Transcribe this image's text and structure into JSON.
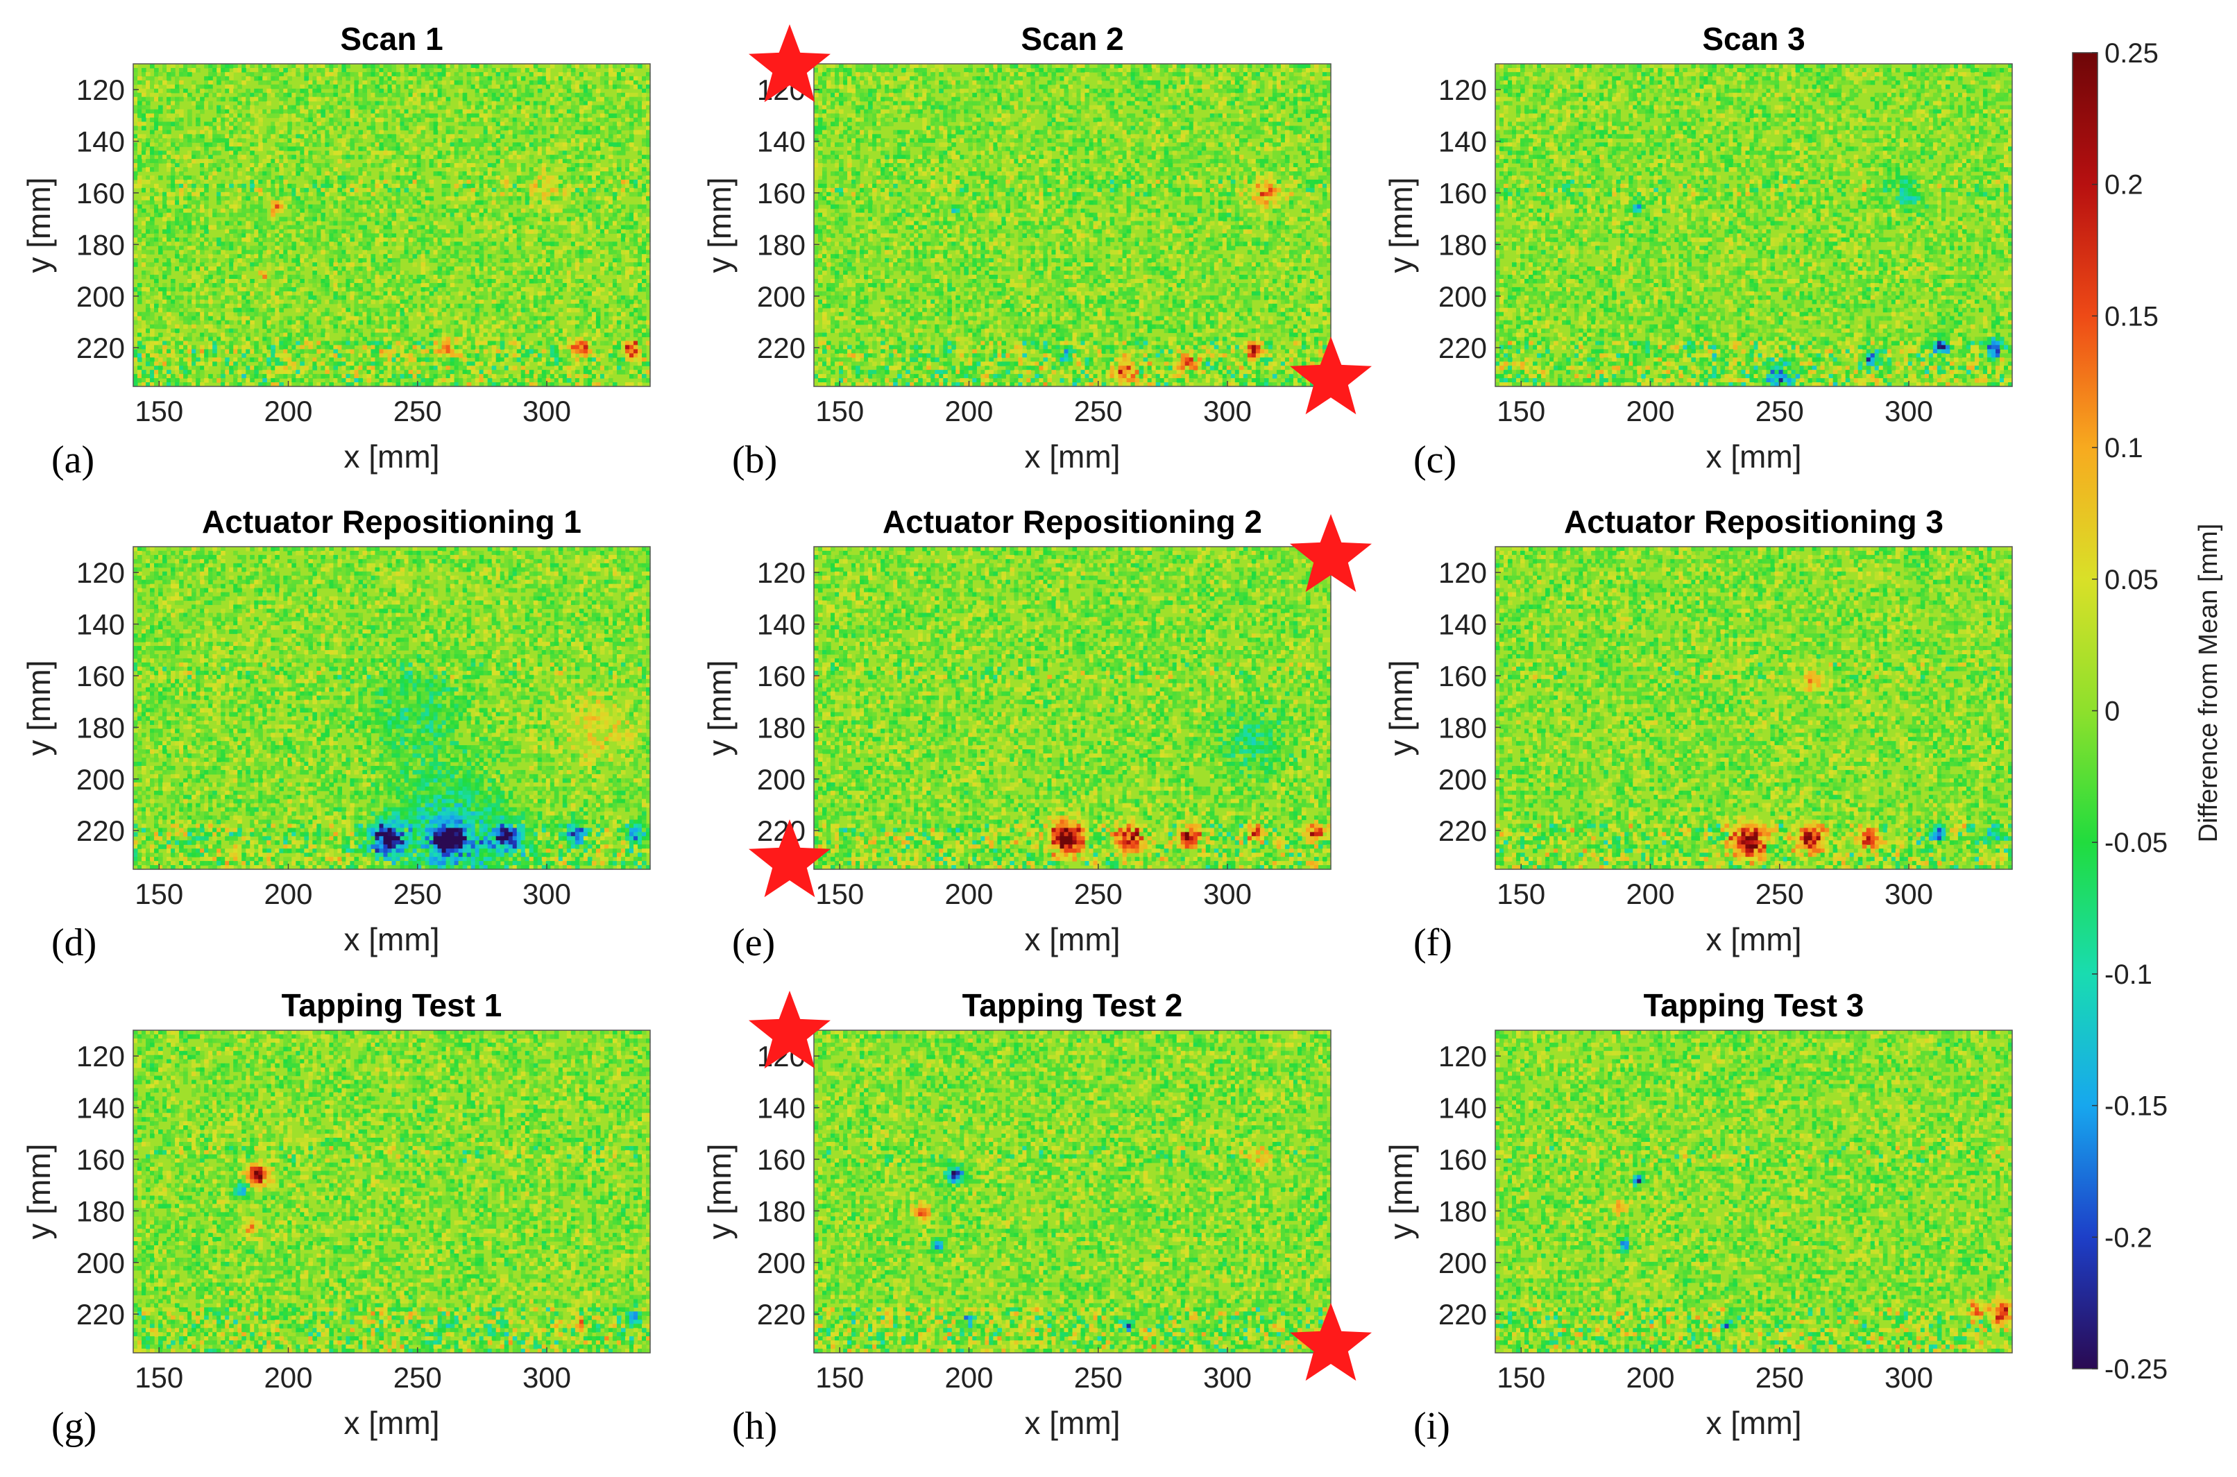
{
  "chart_data": {
    "type": "heatmap",
    "xlabel": "x [mm]",
    "ylabel": "y [mm]",
    "xlim": [
      140,
      340
    ],
    "ylim": [
      110,
      235
    ],
    "xticks": [
      "150",
      "200",
      "250",
      "300"
    ],
    "yticks": [
      "120",
      "140",
      "160",
      "180",
      "200",
      "220"
    ],
    "colorbar": {
      "label": "Difference from Mean [mm]",
      "range": [
        -0.25,
        0.25
      ],
      "ticks": [
        "0.25",
        "0.2",
        "0.15",
        "0.1",
        "0.05",
        "0",
        "-0.05",
        "-0.1",
        "-0.15",
        "-0.2",
        "-0.25"
      ],
      "colors": [
        "#2a0a52",
        "#1d3fc8",
        "#17a7ee",
        "#19dcb0",
        "#21dc3e",
        "#8ee02c",
        "#d9e028",
        "#f7aa1f",
        "#ee4a16",
        "#b71010",
        "#6e0608"
      ]
    },
    "marker_color": "#ff1a1a",
    "panels": [
      {
        "letter": "(a)",
        "title": "Scan 1",
        "stars": [],
        "features": [
          {
            "x": 195,
            "y": 166,
            "r": 2.5,
            "v": 0.15
          },
          {
            "x": 190,
            "y": 192,
            "r": 2,
            "v": 0.08
          },
          {
            "x": 262,
            "y": 220,
            "r": 3,
            "v": 0.14
          },
          {
            "x": 313,
            "y": 220,
            "r": 3,
            "v": 0.2
          },
          {
            "x": 333,
            "y": 221,
            "r": 3,
            "v": 0.2
          },
          {
            "x": 238,
            "y": 222,
            "r": 2,
            "v": 0.12
          },
          {
            "x": 300,
            "y": 157,
            "r": 5,
            "v": 0.06
          }
        ]
      },
      {
        "letter": "(b)",
        "title": "Scan 2",
        "stars": [
          "top-left",
          "bottom-right"
        ],
        "features": [
          {
            "x": 285,
            "y": 226,
            "r": 3,
            "v": 0.2
          },
          {
            "x": 310,
            "y": 221,
            "r": 3,
            "v": 0.2
          },
          {
            "x": 260,
            "y": 230,
            "r": 5,
            "v": 0.12
          },
          {
            "x": 237,
            "y": 223,
            "r": 2,
            "v": -0.15
          },
          {
            "x": 315,
            "y": 160,
            "r": 5,
            "v": 0.12
          },
          {
            "x": 195,
            "y": 166,
            "r": 2,
            "v": -0.1
          }
        ]
      },
      {
        "letter": "(c)",
        "title": "Scan 3",
        "stars": [],
        "features": [
          {
            "x": 313,
            "y": 220,
            "r": 3,
            "v": -0.18
          },
          {
            "x": 333,
            "y": 220,
            "r": 3,
            "v": -0.2
          },
          {
            "x": 286,
            "y": 224,
            "r": 3,
            "v": -0.18
          },
          {
            "x": 250,
            "y": 231,
            "r": 5,
            "v": -0.15
          },
          {
            "x": 300,
            "y": 160,
            "r": 6,
            "v": -0.08
          },
          {
            "x": 195,
            "y": 166,
            "r": 2,
            "v": -0.15
          }
        ]
      },
      {
        "letter": "(d)",
        "title": "Actuator Repositioning 1",
        "stars": [],
        "features": [
          {
            "x": 238,
            "y": 223,
            "r": 6,
            "v": -0.25
          },
          {
            "x": 262,
            "y": 223,
            "r": 5,
            "v": -0.25
          },
          {
            "x": 285,
            "y": 223,
            "r": 5,
            "v": -0.22
          },
          {
            "x": 311,
            "y": 221,
            "r": 4,
            "v": -0.18
          },
          {
            "x": 334,
            "y": 221,
            "r": 3,
            "v": -0.2
          },
          {
            "x": 262,
            "y": 222,
            "r": 20,
            "v": -0.12
          },
          {
            "x": 250,
            "y": 175,
            "r": 18,
            "v": -0.05
          },
          {
            "x": 320,
            "y": 180,
            "r": 12,
            "v": 0.05
          }
        ]
      },
      {
        "letter": "(e)",
        "title": "Actuator Repositioning 2",
        "stars": [
          "top-right",
          "bottom-left"
        ],
        "features": [
          {
            "x": 238,
            "y": 223,
            "r": 6,
            "v": 0.25
          },
          {
            "x": 262,
            "y": 223,
            "r": 5,
            "v": 0.2
          },
          {
            "x": 285,
            "y": 223,
            "r": 4,
            "v": 0.2
          },
          {
            "x": 311,
            "y": 221,
            "r": 3,
            "v": 0.18
          },
          {
            "x": 334,
            "y": 221,
            "r": 3,
            "v": 0.22
          },
          {
            "x": 310,
            "y": 185,
            "r": 12,
            "v": -0.06
          }
        ]
      },
      {
        "letter": "(f)",
        "title": "Actuator Repositioning 3",
        "stars": [],
        "features": [
          {
            "x": 238,
            "y": 224,
            "r": 6,
            "v": 0.25
          },
          {
            "x": 262,
            "y": 223,
            "r": 5,
            "v": 0.22
          },
          {
            "x": 285,
            "y": 223,
            "r": 4,
            "v": 0.18
          },
          {
            "x": 311,
            "y": 221,
            "r": 3,
            "v": -0.2
          },
          {
            "x": 334,
            "y": 221,
            "r": 3,
            "v": -0.15
          },
          {
            "x": 263,
            "y": 162,
            "r": 4,
            "v": 0.1
          }
        ]
      },
      {
        "letter": "(g)",
        "title": "Tapping Test 1",
        "stars": [],
        "features": [
          {
            "x": 188,
            "y": 166,
            "r": 4,
            "v": 0.22
          },
          {
            "x": 182,
            "y": 172,
            "r": 3,
            "v": -0.12
          },
          {
            "x": 185,
            "y": 186,
            "r": 3,
            "v": 0.1
          },
          {
            "x": 333,
            "y": 221,
            "r": 3,
            "v": -0.2
          },
          {
            "x": 313,
            "y": 224,
            "r": 2,
            "v": 0.14
          },
          {
            "x": 262,
            "y": 224,
            "r": 2,
            "v": -0.14
          }
        ]
      },
      {
        "letter": "(h)",
        "title": "Tapping Test 2",
        "stars": [
          "top-left",
          "bottom-right"
        ],
        "features": [
          {
            "x": 195,
            "y": 166,
            "r": 3,
            "v": -0.23
          },
          {
            "x": 188,
            "y": 193,
            "r": 2,
            "v": -0.2
          },
          {
            "x": 182,
            "y": 180,
            "r": 3,
            "v": 0.14
          },
          {
            "x": 313,
            "y": 160,
            "r": 3,
            "v": 0.12
          },
          {
            "x": 200,
            "y": 222,
            "r": 2,
            "v": -0.18
          },
          {
            "x": 262,
            "y": 225,
            "r": 2,
            "v": -0.15
          }
        ]
      },
      {
        "letter": "(i)",
        "title": "Tapping Test 3",
        "stars": [],
        "features": [
          {
            "x": 195,
            "y": 168,
            "r": 2,
            "v": -0.2
          },
          {
            "x": 188,
            "y": 178,
            "r": 3,
            "v": 0.12
          },
          {
            "x": 190,
            "y": 193,
            "r": 2,
            "v": -0.18
          },
          {
            "x": 336,
            "y": 220,
            "r": 4,
            "v": 0.2
          },
          {
            "x": 326,
            "y": 218,
            "r": 3,
            "v": 0.14
          },
          {
            "x": 230,
            "y": 224,
            "r": 2,
            "v": -0.15
          }
        ]
      }
    ]
  }
}
